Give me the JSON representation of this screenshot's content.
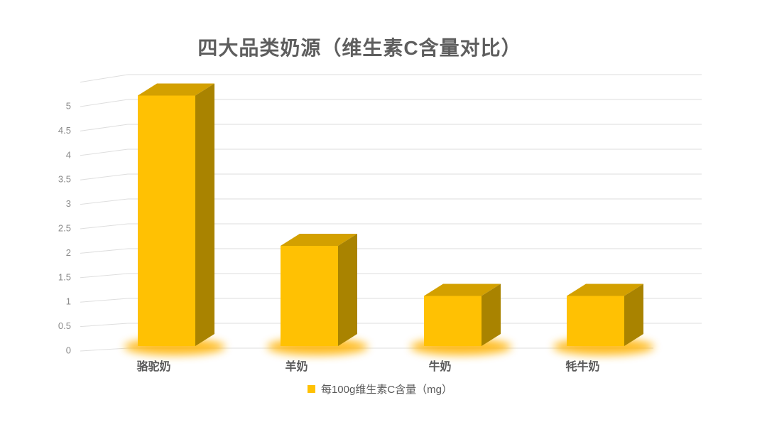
{
  "chart_data": {
    "type": "bar",
    "variant": "3d-column",
    "title": "四大品类奶源（维生素C含量对比）",
    "categories": [
      "骆驼奶",
      "羊奶",
      "牛奶",
      "牦牛奶"
    ],
    "values": [
      5,
      2,
      1,
      1
    ],
    "series_name": "每100g维生素C含量（mg）",
    "legend": {
      "label": "每100g维生素C含量（mg）",
      "position": "bottom",
      "swatch_icon": "small-square"
    },
    "xlabel": "",
    "ylabel": "",
    "ylim": [
      0,
      5.5
    ],
    "ytick_step": 0.5,
    "ytick_labels": [
      "0",
      "0.5",
      "1",
      "1.5",
      "2",
      "2.5",
      "3",
      "3.5",
      "4",
      "4.5",
      "5"
    ],
    "grid": true,
    "background": "#FFFFFF",
    "colors": {
      "bar_front": "#FFC103",
      "bar_top": "#D3A000",
      "bar_side": "#A98300",
      "glow": "#FFB200",
      "gridline": "#DEDEDE",
      "axis_text": "#8A8A8A",
      "category_text": "#595959",
      "legend_text": "#595959",
      "title_text": "#5E5E5E"
    }
  }
}
